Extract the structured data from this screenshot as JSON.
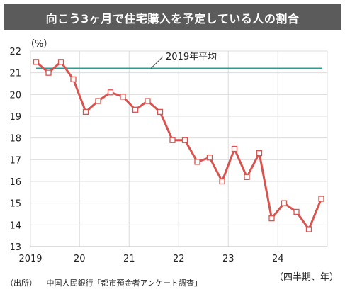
{
  "title": "向こう3ヶ月で住宅購入を予定している人の割合",
  "source_label": "（出所）",
  "source_text": "中国人民銀行「都市預金者アンケート調査」",
  "chart_data": {
    "type": "line",
    "ylabel": "（%）",
    "xlabel": "（四半期、年）",
    "ylim": [
      13,
      22
    ],
    "y_ticks": [
      "13",
      "14",
      "15",
      "16",
      "17",
      "18",
      "19",
      "20",
      "21",
      "22"
    ],
    "x_ticks": [
      "2019",
      "20",
      "21",
      "22",
      "23",
      "24"
    ],
    "grid": true,
    "x": [
      "2019Q1",
      "2019Q2",
      "2019Q3",
      "2019Q4",
      "2020Q1",
      "2020Q2",
      "2020Q3",
      "2020Q4",
      "2021Q1",
      "2021Q2",
      "2021Q3",
      "2021Q4",
      "2022Q1",
      "2022Q2",
      "2022Q3",
      "2022Q4",
      "2023Q1",
      "2023Q2",
      "2023Q3",
      "2023Q4",
      "2024Q1",
      "2024Q2",
      "2024Q3",
      "2024Q4"
    ],
    "series": [
      {
        "color": "#d9534f",
        "values": [
          21.5,
          21.0,
          21.5,
          20.7,
          19.2,
          19.7,
          20.1,
          19.9,
          19.3,
          19.7,
          19.2,
          17.9,
          17.9,
          16.9,
          17.1,
          16.0,
          17.5,
          16.2,
          17.3,
          14.3,
          15.0,
          14.6,
          13.8,
          15.2
        ]
      }
    ],
    "reference_line": {
      "label": "2019年平均",
      "value": 21.2,
      "color": "#2a9d8f"
    }
  }
}
